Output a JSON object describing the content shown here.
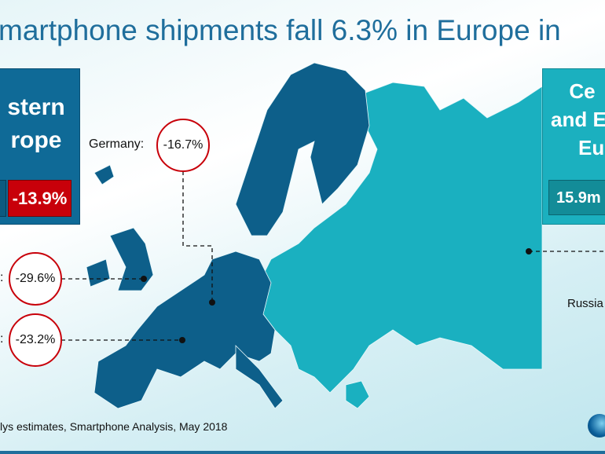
{
  "title": "martphone shipments fall 6.3% in Europe in",
  "western_box": {
    "line1": "stern",
    "line2": "rope",
    "change": "-13.9%",
    "color": "#0f6a97"
  },
  "eastern_box": {
    "line1": "Ce",
    "line2": "and E",
    "line3": "Eu",
    "units": "15.9m",
    "color": "#1bb0bf"
  },
  "callouts": [
    {
      "label": "Germany:",
      "value": "-16.7%"
    },
    {
      "label": ":",
      "value": "-29.6%"
    },
    {
      "label": ":",
      "value": "-23.2%"
    },
    {
      "label": "Russia"
    }
  ],
  "source": "lys estimates, Smartphone Analysis, May 2018",
  "colors": {
    "western": "#0d5f8a",
    "eastern": "#1ab0c0",
    "decline": "#c8000a"
  }
}
